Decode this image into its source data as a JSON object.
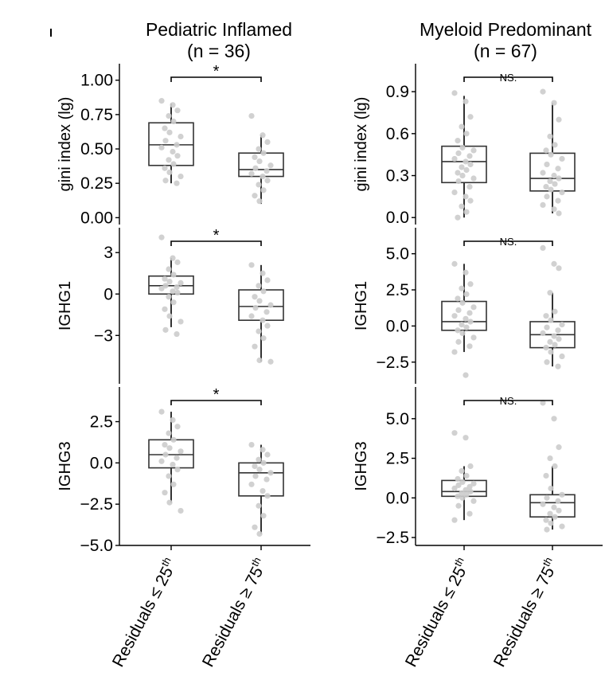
{
  "columns": [
    {
      "title": "Pediatric Inflamed",
      "subtitle": "(n = 36)"
    },
    {
      "title": "Myeloid Predominant",
      "subtitle": "(n = 67)"
    }
  ],
  "x_categories": [
    "Residuals ≤ 25",
    "Residuals ≥ 75"
  ],
  "x_superscript": "th",
  "colors": {
    "point": "#cccccc",
    "box": "#333333",
    "axis": "#000000"
  },
  "chart_data": [
    {
      "type": "box",
      "column": 0,
      "row": 0,
      "ylabel": "gini index (lg)",
      "ylim": [
        -0.05,
        1.12
      ],
      "yticks": [
        0.0,
        0.25,
        0.5,
        0.75,
        1.0
      ],
      "ytick_labels": [
        "0.00",
        "0.25",
        "0.50",
        "0.75",
        "1.00"
      ],
      "significance": "*",
      "boxes": [
        {
          "category": "Residuals ≤ 25th",
          "q1": 0.38,
          "median": 0.53,
          "q3": 0.69,
          "whisker_low": 0.25,
          "whisker_high": 0.83,
          "points": [
            0.85,
            0.82,
            0.78,
            0.74,
            0.7,
            0.65,
            0.62,
            0.59,
            0.56,
            0.53,
            0.51,
            0.48,
            0.45,
            0.42,
            0.39,
            0.36,
            0.33,
            0.3,
            0.27,
            0.25
          ]
        },
        {
          "category": "Residuals ≥ 75th",
          "q1": 0.3,
          "median": 0.35,
          "q3": 0.47,
          "whisker_low": 0.1,
          "whisker_high": 0.6,
          "points": [
            0.74,
            0.6,
            0.55,
            0.5,
            0.47,
            0.44,
            0.41,
            0.38,
            0.36,
            0.34,
            0.32,
            0.3,
            0.27,
            0.24,
            0.2,
            0.16,
            0.12
          ]
        }
      ]
    },
    {
      "type": "box",
      "column": 1,
      "row": 0,
      "ylabel": "gini index (lg)",
      "ylim": [
        -0.05,
        1.1
      ],
      "yticks": [
        0.0,
        0.3,
        0.6,
        0.9
      ],
      "ytick_labels": [
        "0.0",
        "0.3",
        "0.6",
        "0.9"
      ],
      "significance": "NS.",
      "boxes": [
        {
          "category": "Residuals ≤ 25th",
          "q1": 0.25,
          "median": 0.4,
          "q3": 0.51,
          "whisker_low": 0.0,
          "whisker_high": 0.87,
          "points": [
            0.89,
            0.83,
            0.72,
            0.65,
            0.6,
            0.55,
            0.5,
            0.48,
            0.46,
            0.44,
            0.42,
            0.4,
            0.38,
            0.36,
            0.34,
            0.32,
            0.3,
            0.28,
            0.26,
            0.22,
            0.18,
            0.15,
            0.12,
            0.08,
            0.04,
            0.0
          ]
        },
        {
          "category": "Residuals ≥ 75th",
          "q1": 0.19,
          "median": 0.28,
          "q3": 0.46,
          "whisker_low": 0.03,
          "whisker_high": 0.82,
          "points": [
            0.9,
            0.82,
            0.7,
            0.58,
            0.52,
            0.48,
            0.45,
            0.42,
            0.38,
            0.35,
            0.32,
            0.3,
            0.28,
            0.26,
            0.24,
            0.22,
            0.2,
            0.18,
            0.15,
            0.12,
            0.09,
            0.06,
            0.03
          ]
        }
      ]
    },
    {
      "type": "box",
      "column": 0,
      "row": 1,
      "ylabel": "IGHG1",
      "ylim": [
        -6.5,
        4.8
      ],
      "yticks": [
        -3,
        0,
        3
      ],
      "ytick_labels": [
        "−3",
        "0",
        "3"
      ],
      "significance": "*",
      "boxes": [
        {
          "category": "Residuals ≤ 25th",
          "q1": 0.0,
          "median": 0.6,
          "q3": 1.3,
          "whisker_low": -2.4,
          "whisker_high": 2.6,
          "points": [
            4.1,
            2.6,
            2.3,
            1.8,
            1.4,
            1.1,
            0.9,
            0.8,
            0.6,
            0.5,
            0.4,
            0.2,
            0.1,
            -0.2,
            -0.6,
            -1.1,
            -1.6,
            -2.0,
            -2.6,
            -2.9
          ]
        },
        {
          "category": "Residuals ≥ 75th",
          "q1": -1.9,
          "median": -0.9,
          "q3": 0.3,
          "whisker_low": -4.9,
          "whisker_high": 2.1,
          "points": [
            2.1,
            1.5,
            1.0,
            0.6,
            0.2,
            -0.2,
            -0.5,
            -0.8,
            -1.0,
            -1.3,
            -1.6,
            -1.9,
            -2.3,
            -2.7,
            -3.2,
            -3.8,
            -4.8,
            -4.9
          ]
        }
      ]
    },
    {
      "type": "box",
      "column": 1,
      "row": 1,
      "ylabel": "IGHG1",
      "ylim": [
        -4.0,
        6.8
      ],
      "yticks": [
        -2.5,
        0.0,
        2.5,
        5.0
      ],
      "ytick_labels": [
        "−2.5",
        "0.0",
        "2.5",
        "5.0"
      ],
      "significance": "NS.",
      "boxes": [
        {
          "category": "Residuals ≤ 25th",
          "q1": -0.3,
          "median": 0.3,
          "q3": 1.7,
          "whisker_low": -1.8,
          "whisker_high": 4.3,
          "points": [
            4.3,
            3.7,
            2.9,
            2.6,
            2.2,
            1.9,
            1.6,
            1.3,
            1.1,
            0.9,
            0.7,
            0.5,
            0.3,
            0.1,
            -0.1,
            -0.3,
            -0.5,
            -0.8,
            -1.1,
            -1.4,
            -1.8,
            -3.4
          ]
        },
        {
          "category": "Residuals ≥ 75th",
          "q1": -1.5,
          "median": -0.6,
          "q3": 0.3,
          "whisker_low": -2.8,
          "whisker_high": 2.3,
          "points": [
            5.4,
            4.3,
            4.0,
            2.3,
            1.0,
            0.7,
            0.4,
            0.1,
            -0.1,
            -0.3,
            -0.5,
            -0.7,
            -0.9,
            -1.1,
            -1.3,
            -1.5,
            -1.8,
            -2.1,
            -2.5,
            -2.8
          ]
        }
      ]
    },
    {
      "type": "box",
      "column": 0,
      "row": 2,
      "ylabel": "IGHG3",
      "ylim": [
        -5.0,
        4.6
      ],
      "yticks": [
        -5.0,
        -2.5,
        0.0,
        2.5
      ],
      "ytick_labels": [
        "−5.0",
        "−2.5",
        "0.0",
        "2.5"
      ],
      "significance": "*",
      "boxes": [
        {
          "category": "Residuals ≤ 25th",
          "q1": -0.3,
          "median": 0.5,
          "q3": 1.4,
          "whisker_low": -2.4,
          "whisker_high": 3.1,
          "points": [
            3.1,
            2.6,
            2.2,
            1.8,
            1.4,
            1.1,
            0.9,
            0.7,
            0.5,
            0.3,
            0.1,
            -0.1,
            -0.4,
            -0.8,
            -1.3,
            -1.8,
            -2.4,
            -2.9
          ]
        },
        {
          "category": "Residuals ≥ 75th",
          "q1": -2.0,
          "median": -0.6,
          "q3": 0.0,
          "whisker_low": -4.3,
          "whisker_high": 1.1,
          "points": [
            1.1,
            0.8,
            0.5,
            0.2,
            0.0,
            -0.2,
            -0.4,
            -0.6,
            -0.8,
            -1.0,
            -1.3,
            -1.7,
            -2.0,
            -2.6,
            -3.2,
            -3.9,
            -4.3
          ]
        }
      ]
    },
    {
      "type": "box",
      "column": 1,
      "row": 2,
      "ylabel": "IGHG3",
      "ylim": [
        -3.0,
        7.0
      ],
      "yticks": [
        -2.5,
        0.0,
        2.5,
        5.0
      ],
      "ytick_labels": [
        "−2.5",
        "0.0",
        "2.5",
        "5.0"
      ],
      "significance": "NS.",
      "boxes": [
        {
          "category": "Residuals ≤ 25th",
          "q1": 0.1,
          "median": 0.4,
          "q3": 1.1,
          "whisker_low": -1.4,
          "whisker_high": 2.0,
          "points": [
            4.1,
            3.8,
            2.0,
            1.7,
            1.4,
            1.2,
            1.0,
            0.9,
            0.8,
            0.7,
            0.6,
            0.5,
            0.4,
            0.3,
            0.2,
            0.1,
            0.0,
            -0.2,
            -0.5,
            -1.0,
            -1.4
          ]
        },
        {
          "category": "Residuals ≥ 75th",
          "q1": -1.2,
          "median": -0.3,
          "q3": 0.2,
          "whisker_low": -2.0,
          "whisker_high": 2.0,
          "points": [
            6.0,
            5.0,
            3.2,
            2.5,
            2.0,
            1.4,
            0.6,
            0.2,
            0.0,
            -0.2,
            -0.4,
            -0.6,
            -0.8,
            -1.0,
            -1.2,
            -1.4,
            -1.6,
            -1.8,
            -2.0
          ]
        }
      ]
    }
  ]
}
